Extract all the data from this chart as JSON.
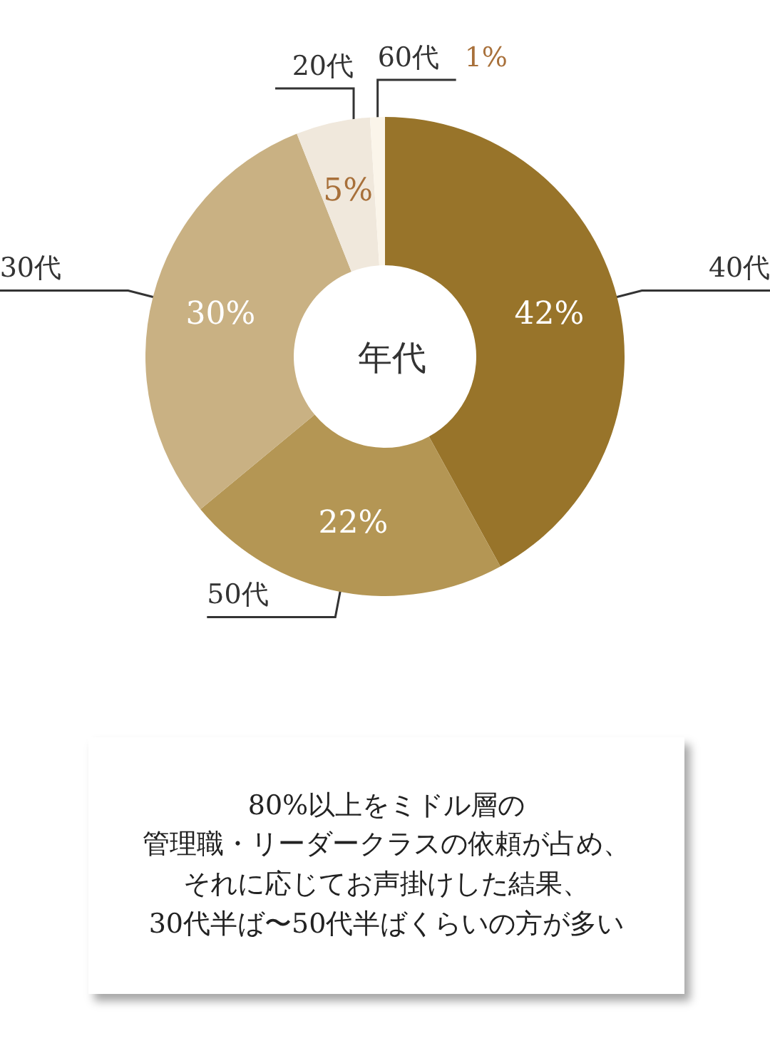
{
  "chart_data": {
    "type": "donut",
    "title": "年代",
    "categories": [
      "40代",
      "50代",
      "30代",
      "20代",
      "60代"
    ],
    "values": [
      42,
      22,
      30,
      5,
      1
    ],
    "value_labels": [
      "42%",
      "22%",
      "30%",
      "5%",
      "1%"
    ],
    "colors": [
      "#98742a",
      "#b49654",
      "#c9b183",
      "#f0e8dc",
      "#fbf5ea"
    ],
    "annotations": [
      "80%以上をミドル層の",
      "管理職・リーダークラスの依頼が占め、",
      "それに応じてお声掛けした結果、",
      "30代半ば〜50代半ばくらいの方が多い"
    ]
  }
}
